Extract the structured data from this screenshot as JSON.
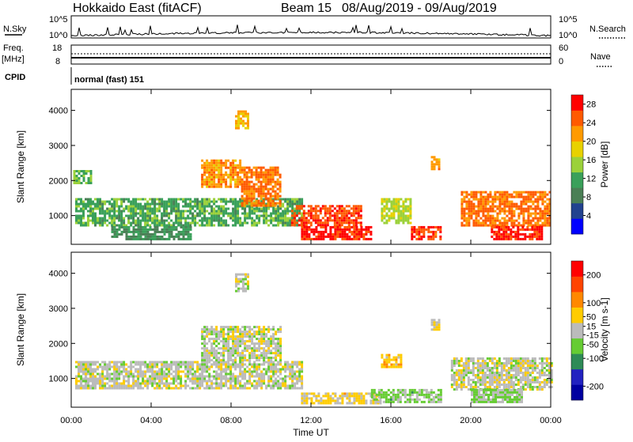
{
  "header": {
    "station": "Hokkaido East (fitACF)",
    "beam": "Beam 15",
    "dates": "08/Aug/2019 - 09/Aug/2019"
  },
  "top_panels": {
    "nsky_label": "N.Sky",
    "nsky_ticks": [
      "10^5",
      "10^0"
    ],
    "nsearch_label": "N.Search",
    "nsearch_ticks": [
      "10^5",
      "10^0"
    ],
    "freq_label": "Freq.",
    "freq_unit": "[MHz]",
    "freq_ticks": [
      "18",
      "8"
    ],
    "nave_label": "Nave",
    "nave_ticks": [
      "60",
      "0"
    ],
    "cpid_label": "CPID",
    "cpid_text": "normal (fast) 151"
  },
  "colors": {
    "power_scale": [
      "#0000ff",
      "#22428f",
      "#4a7f55",
      "#3aa05a",
      "#9bd13a",
      "#e8d100",
      "#ff9a00",
      "#ff5a00",
      "#ff0000"
    ],
    "velocity_scale": [
      "#0000a0",
      "#2222c0",
      "#2e8b57",
      "#66cc33",
      "#bbbbbb",
      "#ffcc00",
      "#ff8800",
      "#ff4400",
      "#ff0000"
    ]
  },
  "chart_data": [
    {
      "type": "heatmap",
      "panel": "power",
      "ylabel": "Slant Range [km]",
      "yticks": [
        "1000",
        "2000",
        "3000",
        "4000"
      ],
      "ylim": [
        180,
        4600
      ],
      "colorbar_label": "Power [dB]",
      "colorbar_ticks": [
        "4",
        "8",
        "12",
        "16",
        "20",
        "24",
        "28"
      ],
      "colorbar_range": [
        0,
        30
      ],
      "regions": [
        {
          "t0": 0.2,
          "t1": 11.5,
          "r0": 700,
          "r1": 1500,
          "v": 12
        },
        {
          "t0": 2.0,
          "t1": 6.0,
          "r0": 300,
          "r1": 700,
          "v": 10
        },
        {
          "t0": 6.5,
          "t1": 8.5,
          "r0": 1800,
          "r1": 2600,
          "v": 22
        },
        {
          "t0": 8.5,
          "t1": 10.5,
          "r0": 1300,
          "r1": 2400,
          "v": 24
        },
        {
          "t0": 8.2,
          "t1": 8.8,
          "r0": 3500,
          "r1": 4000,
          "v": 20
        },
        {
          "t0": 11.0,
          "t1": 14.5,
          "r0": 700,
          "r1": 1300,
          "v": 26
        },
        {
          "t0": 11.5,
          "t1": 15.0,
          "r0": 300,
          "r1": 700,
          "v": 28
        },
        {
          "t0": 15.5,
          "t1": 17.0,
          "r0": 800,
          "r1": 1500,
          "v": 16
        },
        {
          "t0": 17.0,
          "t1": 18.5,
          "r0": 300,
          "r1": 700,
          "v": 26
        },
        {
          "t0": 18.0,
          "t1": 18.4,
          "r0": 2300,
          "r1": 2700,
          "v": 22
        },
        {
          "t0": 19.5,
          "t1": 24.0,
          "r0": 700,
          "r1": 1700,
          "v": 24
        },
        {
          "t0": 21.0,
          "t1": 23.5,
          "r0": 300,
          "r1": 700,
          "v": 28
        },
        {
          "t0": 0.1,
          "t1": 1.0,
          "r0": 1900,
          "r1": 2300,
          "v": 14
        }
      ]
    },
    {
      "type": "heatmap",
      "panel": "velocity",
      "xlabel": "Time UT",
      "ylabel": "Slant Range [km]",
      "xticks": [
        "00:00",
        "04:00",
        "08:00",
        "12:00",
        "16:00",
        "20:00",
        "00:00"
      ],
      "xlim": [
        0,
        24
      ],
      "yticks": [
        "1000",
        "2000",
        "3000",
        "4000"
      ],
      "ylim": [
        180,
        4600
      ],
      "colorbar_label": "Velocity [m s-1]",
      "colorbar_ticks": [
        "200",
        "100",
        "50",
        "15",
        "-15",
        "-50",
        "-100",
        "-200"
      ],
      "colorbar_range": [
        -250,
        250
      ],
      "regions": [
        {
          "t0": 0.2,
          "t1": 11.5,
          "r0": 700,
          "r1": 1500,
          "v": 0
        },
        {
          "t0": 6.5,
          "t1": 10.5,
          "r0": 1500,
          "r1": 2500,
          "v": 0
        },
        {
          "t0": 8.2,
          "t1": 8.8,
          "r0": 3500,
          "r1": 4000,
          "v": 0
        },
        {
          "t0": 11.5,
          "t1": 15.5,
          "r0": 300,
          "r1": 600,
          "v": 40
        },
        {
          "t0": 15.5,
          "t1": 16.5,
          "r0": 1300,
          "r1": 1700,
          "v": 60
        },
        {
          "t0": 15.0,
          "t1": 18.5,
          "r0": 300,
          "r1": 700,
          "v": -40
        },
        {
          "t0": 19.0,
          "t1": 24.0,
          "r0": 700,
          "r1": 1600,
          "v": 0
        },
        {
          "t0": 20.0,
          "t1": 22.5,
          "r0": 300,
          "r1": 700,
          "v": -30
        },
        {
          "t0": 18.0,
          "t1": 18.4,
          "r0": 2400,
          "r1": 2700,
          "v": 20
        }
      ]
    }
  ]
}
